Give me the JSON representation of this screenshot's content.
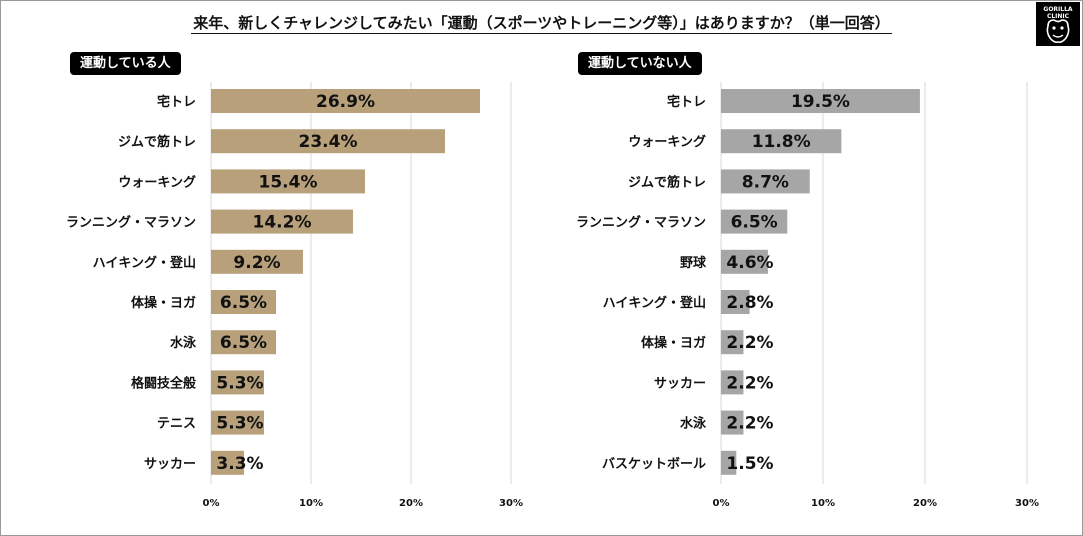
{
  "title": "来年、新しくチャレンジしてみたい「運動（スポーツやトレーニング等）」はありますか？（単一回答）",
  "logo": {
    "line1": "GORILLA",
    "line2": "CLINIC"
  },
  "colors": {
    "left_bar": "#b8a07a",
    "right_bar": "#a6a6a6",
    "grid": "#d9d9d9",
    "text": "#111111"
  },
  "chart_data": [
    {
      "type": "bar",
      "orientation": "horizontal",
      "title": "運動している人",
      "categories": [
        "宅トレ",
        "ジムで筋トレ",
        "ウォーキング",
        "ランニング・マラソン",
        "ハイキング・登山",
        "体操・ヨガ",
        "水泳",
        "格闘技全般",
        "テニス",
        "サッカー"
      ],
      "values": [
        26.9,
        23.4,
        15.4,
        14.2,
        9.2,
        6.5,
        6.5,
        5.3,
        5.3,
        3.3
      ],
      "value_labels": [
        "26.9%",
        "23.4%",
        "15.4%",
        "14.2%",
        "9.2%",
        "6.5%",
        "6.5%",
        "5.3%",
        "5.3%",
        "3.3%"
      ],
      "xlim": [
        0,
        30
      ],
      "xticks": [
        0,
        10,
        20,
        30
      ],
      "xtick_labels": [
        "0%",
        "10%",
        "20%",
        "30%"
      ],
      "grid": true
    },
    {
      "type": "bar",
      "orientation": "horizontal",
      "title": "運動していない人",
      "categories": [
        "宅トレ",
        "ウォーキング",
        "ジムで筋トレ",
        "ランニング・マラソン",
        "野球",
        "ハイキング・登山",
        "体操・ヨガ",
        "サッカー",
        "水泳",
        "バスケットボール"
      ],
      "values": [
        19.5,
        11.8,
        8.7,
        6.5,
        4.6,
        2.8,
        2.2,
        2.2,
        2.2,
        1.5
      ],
      "value_labels": [
        "19.5%",
        "11.8%",
        "8.7%",
        "6.5%",
        "4.6%",
        "2.8%",
        "2.2%",
        "2.2%",
        "2.2%",
        "1.5%"
      ],
      "xlim": [
        0,
        30
      ],
      "xticks": [
        0,
        10,
        20,
        30
      ],
      "xtick_labels": [
        "0%",
        "10%",
        "20%",
        "30%"
      ],
      "grid": true
    }
  ]
}
